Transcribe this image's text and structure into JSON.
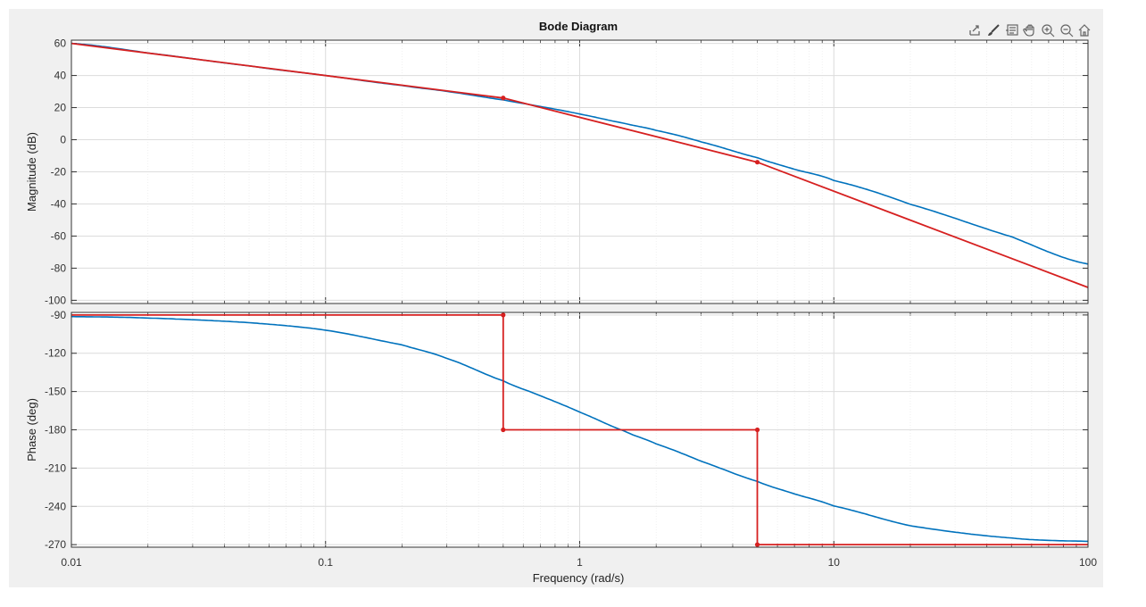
{
  "toolbar": {
    "icons": [
      "export-icon",
      "brush-icon",
      "data-tips-icon",
      "pan-icon",
      "zoom-in-icon",
      "zoom-out-icon",
      "home-icon"
    ]
  },
  "colors": {
    "actual": "#0072bd",
    "asymptote": "#d62020",
    "grid": "#dcdcdc",
    "axes_bg": "#ffffff",
    "figure_bg": "#f0f0f0"
  },
  "chart_data": {
    "type": "line",
    "title": "Bode Diagram",
    "xlabel": "Frequency  (rad/s)",
    "xscale": "log",
    "xlim": [
      0.01,
      100
    ],
    "x_ticks": [
      0.01,
      0.1,
      1,
      10,
      100
    ],
    "x_tick_labels": [
      "0.01",
      "0.1",
      "1",
      "10",
      "100"
    ],
    "grid": true,
    "panels": [
      {
        "name": "magnitude",
        "ylabel": "Magnitude (dB)",
        "ylim": [
          -102,
          62
        ],
        "y_ticks": [
          60,
          40,
          20,
          0,
          -20,
          -40,
          -60,
          -80,
          -100
        ],
        "y_tick_labels": [
          "60",
          "40",
          "20",
          "0",
          "-20",
          "-40",
          "-60",
          "-80",
          "-100"
        ],
        "series": [
          {
            "role": "actual",
            "x": [
              0.01,
              0.02,
              0.05,
              0.1,
              0.2,
              0.3,
              0.5,
              0.7,
              1,
              1.5,
              2,
              3,
              5,
              7,
              10,
              20,
              50,
              100
            ],
            "y": [
              60,
              54,
              46,
              40,
              33.8,
              30.1,
              24.8,
              20.7,
              16,
              10.2,
              5.8,
              -1.3,
              -11.2,
              -18.4,
              -25.4,
              -40.2,
              -60.4,
              -77.4
            ]
          },
          {
            "role": "asymptote",
            "x": [
              0.01,
              0.5,
              5,
              100
            ],
            "y": [
              60,
              26,
              -14,
              -92
            ],
            "markers_at": [
              0.5,
              5
            ]
          }
        ]
      },
      {
        "name": "phase",
        "ylabel": "Phase (deg)",
        "ylim": [
          -272,
          -88
        ],
        "y_ticks": [
          -90,
          -120,
          -150,
          -180,
          -210,
          -240,
          -270
        ],
        "y_tick_labels": [
          "-90",
          "-120",
          "-150",
          "-180",
          "-210",
          "-240",
          "-270"
        ],
        "series": [
          {
            "role": "actual",
            "x": [
              0.01,
              0.02,
              0.05,
              0.1,
              0.2,
              0.3,
              0.5,
              0.7,
              1,
              1.5,
              2,
              3,
              5,
              7,
              10,
              20,
              50,
              100
            ],
            "y": [
              -91.3,
              -92.4,
              -96.0,
              -101.9,
              -113.4,
              -124.0,
              -141.6,
              -153.3,
              -166.1,
              -181.0,
              -191.0,
              -204.6,
              -220.4,
              -230.2,
              -239.7,
              -255.2,
              -264.8,
              -267.4
            ]
          },
          {
            "role": "asymptote",
            "x": [
              0.01,
              0.5,
              0.5,
              5,
              5,
              100
            ],
            "y": [
              -90,
              -90,
              -180,
              -180,
              -270,
              -270
            ],
            "markers": [
              [
                0.5,
                -90
              ],
              [
                0.5,
                -180
              ],
              [
                5,
                -180
              ],
              [
                5,
                -270
              ]
            ]
          }
        ]
      }
    ]
  }
}
